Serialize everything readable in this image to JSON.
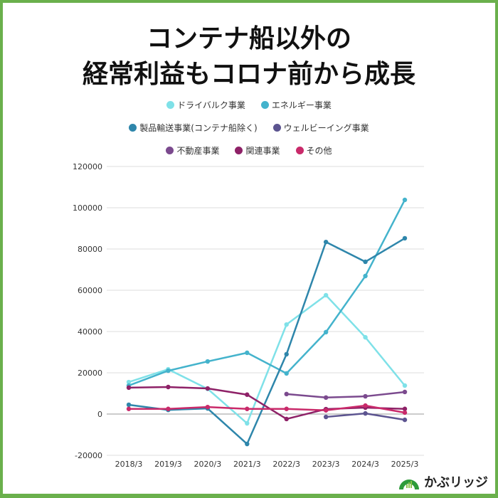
{
  "title_lines": [
    "コンテナ船以外の",
    "経常利益もコロナ前から成長"
  ],
  "logo_text": "かぶリッジ",
  "chart_data": {
    "type": "line",
    "title": "コンテナ船以外の経常利益もコロナ前から成長",
    "categories": [
      "2018/3",
      "2019/3",
      "2020/3",
      "2021/3",
      "2022/3",
      "2023/3",
      "2024/3",
      "2025/3"
    ],
    "ylim": [
      -20000,
      120000
    ],
    "yticks": [
      -20000,
      0,
      20000,
      40000,
      60000,
      80000,
      100000,
      120000
    ],
    "grid": true,
    "legend_placement": "top",
    "series": [
      {
        "name": "ドライバルク事業",
        "color": "#7fe1e8",
        "values": [
          15500,
          21700,
          12200,
          -4500,
          43400,
          57600,
          37200,
          13800
        ]
      },
      {
        "name": "エネルギー事業",
        "color": "#44b3cc",
        "values": [
          13800,
          21000,
          25500,
          29700,
          19700,
          39700,
          66900,
          103800
        ]
      },
      {
        "name": "製品輸送事業(コンテナ船除く)",
        "color": "#2e86ab",
        "values": [
          4500,
          2000,
          2700,
          -14500,
          29000,
          83400,
          73800,
          85200
        ]
      },
      {
        "name": "ウェルビーイング事業",
        "color": "#5c5490",
        "values": [
          null,
          null,
          null,
          null,
          null,
          -1400,
          300,
          -2800
        ]
      },
      {
        "name": "不動産事業",
        "color": "#7b4a8e",
        "values": [
          null,
          null,
          null,
          null,
          9700,
          8000,
          8600,
          10700
        ]
      },
      {
        "name": "関連事業",
        "color": "#8e2167",
        "values": [
          12800,
          13100,
          12400,
          9400,
          -2400,
          2400,
          3100,
          2500
        ]
      },
      {
        "name": "その他",
        "color": "#c92a6a",
        "values": [
          2500,
          2500,
          3400,
          2500,
          2500,
          1800,
          4100,
          700
        ]
      }
    ]
  }
}
